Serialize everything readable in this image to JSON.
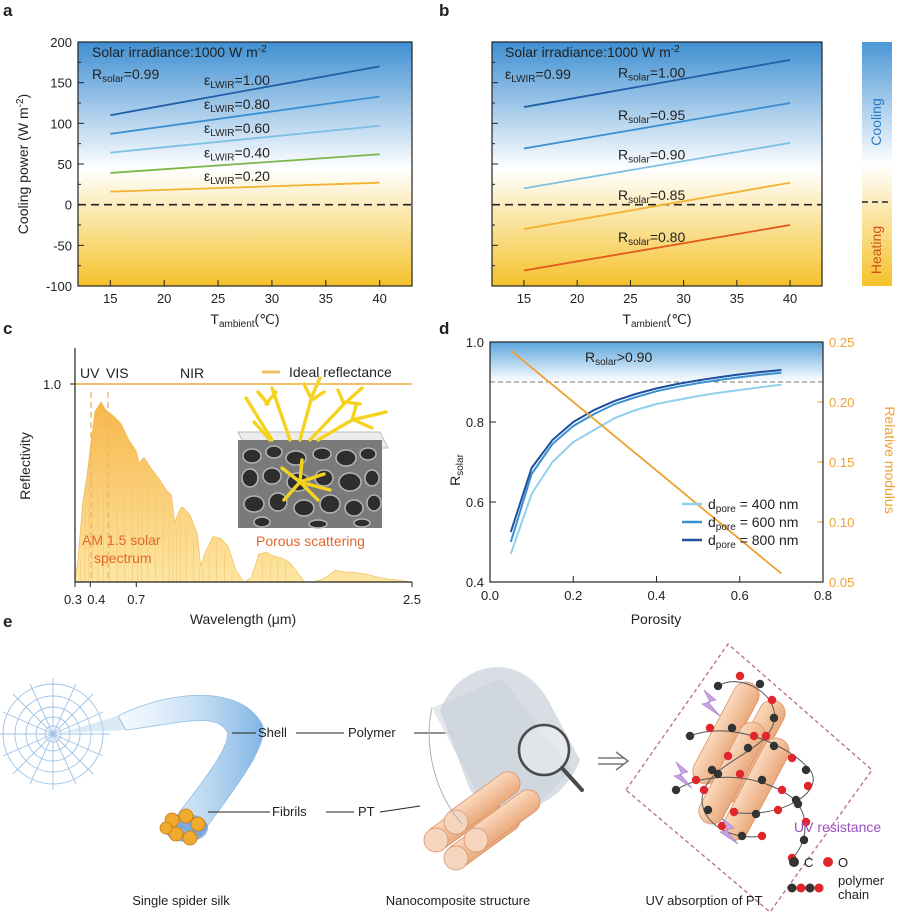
{
  "panels": {
    "a": {
      "label": "a"
    },
    "b": {
      "label": "b"
    },
    "c": {
      "label": "c"
    },
    "d": {
      "label": "d"
    },
    "e": {
      "label": "e"
    }
  },
  "colorbar": {
    "cooling": "Cooling",
    "heating": "Heating"
  },
  "colors": {
    "cool_top": "#3f8fd2",
    "heat_bottom": "#f5c22a",
    "orange": "#f0a030",
    "dark_blue": "#1f5fa8"
  },
  "chart_data": [
    {
      "id": "a",
      "type": "line",
      "xlabel": "T",
      "xlabel_sub": "ambient",
      "xlabel_unit": "(℃)",
      "ylabel": "Cooling power (W m",
      "ylabel_sup": "-2",
      "ylabel_end": ")",
      "xlim": [
        12,
        43
      ],
      "ylim": [
        -100,
        200
      ],
      "xticks": [
        15,
        20,
        25,
        30,
        35,
        40
      ],
      "yticks": [
        -100,
        -50,
        0,
        50,
        100,
        150,
        200
      ],
      "annotation_line1": "Solar irradiance:1000 W m",
      "annotation_line1_sup": "-2",
      "annotation_line2": "R",
      "annotation_line2_sub": "solar",
      "annotation_line2_val": "=0.99",
      "series_symbol": "ε",
      "series_sub": "LWIR",
      "series": [
        {
          "name": "=1.00",
          "x": [
            15,
            40
          ],
          "values": [
            110,
            170
          ],
          "color": "#1f5fa8"
        },
        {
          "name": "=0.80",
          "x": [
            15,
            40
          ],
          "values": [
            87,
            133
          ],
          "color": "#3a8fd0"
        },
        {
          "name": "=0.60",
          "x": [
            15,
            40
          ],
          "values": [
            64,
            97
          ],
          "color": "#7cc0e4"
        },
        {
          "name": "=0.40",
          "x": [
            15,
            40
          ],
          "values": [
            39,
            62
          ],
          "color": "#7ab648"
        },
        {
          "name": "=0.20",
          "x": [
            15,
            40
          ],
          "values": [
            16,
            27
          ],
          "color": "#f2b233"
        }
      ]
    },
    {
      "id": "b",
      "type": "line",
      "xlabel": "T",
      "xlabel_sub": "ambient",
      "xlabel_unit": "(℃)",
      "xlim": [
        12,
        43
      ],
      "ylim": [
        -100,
        200
      ],
      "xticks": [
        15,
        20,
        25,
        30,
        35,
        40
      ],
      "yticks": [
        -100,
        -50,
        0,
        50,
        100,
        150,
        200
      ],
      "annotation_line1": "Solar irradiance:1000 W m",
      "annotation_line1_sup": "-2",
      "annotation_line2": "ε",
      "annotation_line2_sub": "LWIR",
      "annotation_line2_val": "=0.99",
      "series_symbol": "R",
      "series_sub": "solar",
      "series": [
        {
          "name": "=1.00",
          "x": [
            15,
            40
          ],
          "values": [
            120,
            178
          ],
          "color": "#1f5fa8"
        },
        {
          "name": "=0.95",
          "x": [
            15,
            40
          ],
          "values": [
            69,
            125
          ],
          "color": "#3a8fd0"
        },
        {
          "name": "=0.90",
          "x": [
            15,
            40
          ],
          "values": [
            20,
            76
          ],
          "color": "#7cc0e4"
        },
        {
          "name": "=0.85",
          "x": [
            15,
            40
          ],
          "values": [
            -30,
            27
          ],
          "color": "#f2b233"
        },
        {
          "name": "=0.80",
          "x": [
            15,
            40
          ],
          "values": [
            -81,
            -25
          ],
          "color": "#e05a1c"
        }
      ]
    },
    {
      "id": "c",
      "type": "area",
      "xlabel": "Wavelength (μm)",
      "ylabel": "Reflectivity",
      "xlim": [
        0.3,
        2.5
      ],
      "xticks": [
        "0.3",
        "0.4",
        "0.7",
        "2.5"
      ],
      "ytick": "1.0",
      "region_labels": [
        "UV",
        "VIS",
        "NIR"
      ],
      "legend": "Ideal reflectance",
      "ideal_reflectance": 1.0,
      "spectrum_label_1": "AM 1.5 solar",
      "spectrum_label_2": "spectrum",
      "inset_label": "Porous scattering",
      "spectrum": {
        "x": [
          0.3,
          0.32,
          0.35,
          0.38,
          0.4,
          0.43,
          0.47,
          0.5,
          0.55,
          0.6,
          0.65,
          0.7,
          0.72,
          0.75,
          0.8,
          0.85,
          0.9,
          0.93,
          0.95,
          0.98,
          1.0,
          1.05,
          1.1,
          1.12,
          1.15,
          1.2,
          1.25,
          1.3,
          1.35,
          1.4,
          1.45,
          1.5,
          1.55,
          1.6,
          1.65,
          1.7,
          1.75,
          1.8,
          1.85,
          1.9,
          1.95,
          2.0,
          2.05,
          2.1,
          2.2,
          2.3,
          2.4,
          2.5
        ],
        "values": [
          0.01,
          0.12,
          0.4,
          0.55,
          0.68,
          0.86,
          0.91,
          0.87,
          0.84,
          0.8,
          0.72,
          0.66,
          0.6,
          0.63,
          0.57,
          0.52,
          0.46,
          0.44,
          0.3,
          0.36,
          0.38,
          0.34,
          0.24,
          0.08,
          0.15,
          0.23,
          0.22,
          0.18,
          0.06,
          0.0,
          0.02,
          0.14,
          0.15,
          0.13,
          0.12,
          0.1,
          0.05,
          0.0,
          0.0,
          0.01,
          0.03,
          0.06,
          0.05,
          0.05,
          0.04,
          0.02,
          0.01,
          0.0
        ]
      }
    },
    {
      "id": "d",
      "type": "line",
      "xlabel": "Porosity",
      "ylabel": "R",
      "ylabel_sub": "solar",
      "y2label": "Relative modulus",
      "xlim": [
        0.0,
        0.8
      ],
      "ylim": [
        0.4,
        1.0
      ],
      "y2lim": [
        0.05,
        0.25
      ],
      "xticks": [
        "0.0",
        "0.2",
        "0.4",
        "0.6",
        "0.8"
      ],
      "yticks": [
        "0.4",
        "0.6",
        "0.8",
        "1.0"
      ],
      "y2ticks": [
        "0.05",
        "0.10",
        "0.15",
        "0.20",
        "0.25"
      ],
      "threshold": 0.9,
      "threshold_label": "R",
      "threshold_sub": "solar",
      "threshold_val": ">0.90",
      "legend_symbol": "d",
      "legend_sub": "pore",
      "series": [
        {
          "name": "= 400 nm",
          "x": [
            0.05,
            0.1,
            0.15,
            0.2,
            0.25,
            0.3,
            0.35,
            0.4,
            0.45,
            0.5,
            0.55,
            0.6,
            0.65,
            0.7
          ],
          "values": [
            0.47,
            0.62,
            0.7,
            0.75,
            0.78,
            0.81,
            0.83,
            0.845,
            0.855,
            0.865,
            0.873,
            0.88,
            0.887,
            0.893
          ],
          "color": "#8fd0ea"
        },
        {
          "name": "= 600 nm",
          "x": [
            0.05,
            0.1,
            0.15,
            0.2,
            0.25,
            0.3,
            0.35,
            0.4,
            0.45,
            0.5,
            0.55,
            0.6,
            0.65,
            0.7
          ],
          "values": [
            0.5,
            0.67,
            0.745,
            0.79,
            0.82,
            0.845,
            0.862,
            0.877,
            0.888,
            0.897,
            0.905,
            0.912,
            0.918,
            0.923
          ],
          "color": "#3a8fd0"
        },
        {
          "name": "= 800 nm",
          "x": [
            0.05,
            0.1,
            0.15,
            0.2,
            0.25,
            0.3,
            0.35,
            0.4,
            0.45,
            0.5,
            0.55,
            0.6,
            0.65,
            0.7
          ],
          "values": [
            0.525,
            0.685,
            0.755,
            0.8,
            0.83,
            0.853,
            0.87,
            0.884,
            0.895,
            0.904,
            0.912,
            0.919,
            0.925,
            0.93
          ],
          "color": "#1f4fa0"
        }
      ],
      "modulus": {
        "name": "Relative modulus",
        "x": [
          0.05,
          0.7
        ],
        "values": [
          0.243,
          0.057
        ],
        "color": "#f0a030"
      }
    }
  ],
  "schematic": {
    "shell": "Shell",
    "polymer": "Polymer",
    "fibrils": "Fibrils",
    "pt": "PT",
    "uv_resistance": "UV resistance",
    "c": "C",
    "o": "O",
    "polymer_chain_1": "polymer",
    "polymer_chain_2": "chain",
    "caption1": "Single spider silk",
    "caption2": "Nanocomposite structure",
    "caption3": "UV absorption of PT"
  }
}
